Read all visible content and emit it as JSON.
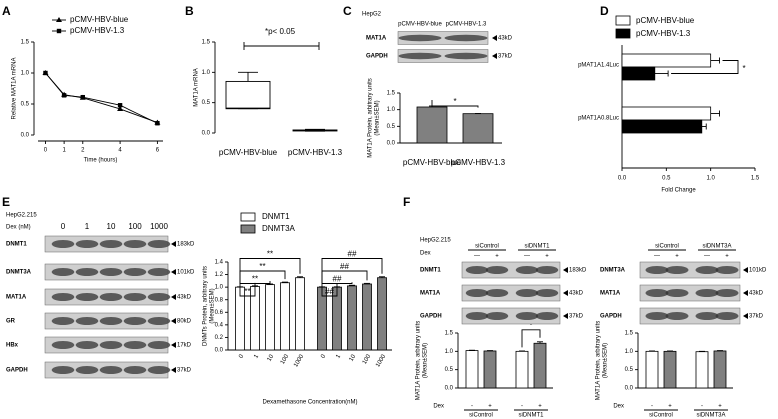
{
  "panel_labels": [
    "A",
    "B",
    "C",
    "D",
    "E",
    "F"
  ],
  "chart_data": [
    {
      "type": "line",
      "xlabel": "Time (hours)",
      "ylabel": "Relative MAT1A mRNA",
      "x": [
        0,
        1,
        2,
        4,
        6
      ],
      "xlim": [
        -0.4,
        6.3
      ],
      "xticks": [
        0,
        1,
        2,
        4,
        6
      ],
      "ylim": [
        0,
        1.5
      ],
      "yticks": [
        {
          "value": 0,
          "label": "0.0"
        },
        {
          "value": 0.5,
          "label": "0.5"
        },
        {
          "value": 1,
          "label": "1.0"
        },
        {
          "value": 1.5,
          "label": "1.5"
        }
      ],
      "legend": "top-right",
      "series": [
        {
          "name": "pCMV-HBV-blue",
          "marker": "triangle",
          "color": "#000000",
          "values": [
            1.0,
            0.65,
            0.6,
            0.42,
            0.2
          ]
        },
        {
          "name": "pCMV-HBV-1.3",
          "marker": "square",
          "color": "#000000",
          "values": [
            1.0,
            0.64,
            0.61,
            0.48,
            0.19
          ]
        }
      ]
    },
    {
      "type": "box",
      "ylabel": "MAT1A mRNA",
      "annotation": "*p< 0.05",
      "categories": [
        "pCMV-HBV-blue",
        "pCMV-HBV-1.3"
      ],
      "color": "#ffffff",
      "ylim": [
        0,
        1.5
      ],
      "yticks": [
        {
          "value": 0,
          "label": "0.0"
        },
        {
          "value": 0.5,
          "label": "0.5"
        },
        {
          "value": 1,
          "label": "1.0"
        },
        {
          "value": 1.5,
          "label": "1.5"
        }
      ],
      "boxes": [
        {
          "min": 0.4,
          "q1": 0.4,
          "median": 0.41,
          "q3": 0.85,
          "max": 1.0
        },
        {
          "min": 0.03,
          "q1": 0.04,
          "median": 0.045,
          "q3": 0.05,
          "max": 0.06
        }
      ]
    },
    {
      "type": "bar",
      "ylabel": [
        "MAT1A Protein, arbitrary units",
        "(Mean±SEM)"
      ],
      "annotation": "*",
      "categories": [
        "pCMV-HBV-blue",
        "pCMV-HBV-1.3"
      ],
      "values": [
        1.08,
        0.88
      ],
      "errors": [
        0.03,
        0.005
      ],
      "color": "#808080",
      "ylim": [
        0,
        1.5
      ],
      "yticks": [
        {
          "value": 0,
          "label": "0.0"
        },
        {
          "value": 0.5,
          "label": "0.5"
        },
        {
          "value": 1,
          "label": "1.0"
        },
        {
          "value": 1.5,
          "label": "1.5"
        }
      ]
    },
    {
      "type": "hbar",
      "xlabel": "Fold Change",
      "annotation": "*",
      "legend": "top",
      "categories": [
        "pMAT1A1.4Luc",
        "pMAT1A0.8Luc"
      ],
      "xlim": [
        0,
        1.5
      ],
      "xticks": [
        {
          "value": 0,
          "label": "0.0"
        },
        {
          "value": 0.5,
          "label": "0.5"
        },
        {
          "value": 1,
          "label": "1.0"
        },
        {
          "value": 1.5,
          "label": "1.5"
        }
      ],
      "series": [
        {
          "name": "pCMV-HBV-blue",
          "color": "#ffffff",
          "values": [
            1.0,
            1.0
          ],
          "errors": [
            0.1,
            0.1
          ]
        },
        {
          "name": "pCMV-HBV-1.3",
          "color": "#000000",
          "values": [
            0.37,
            0.9
          ],
          "errors": [
            0.15,
            0.05
          ]
        }
      ]
    },
    {
      "type": "grouped-bar",
      "ylabel": [
        "DNMTs Protein, arbitrary units",
        "(Mean±SEM)"
      ],
      "xlabel": "Dexamethasone Concentration(nM)",
      "categories": [
        "0",
        "1",
        "10",
        "100",
        "1000"
      ],
      "ylim": [
        0,
        1.4
      ],
      "yticks": [
        {
          "value": 0,
          "label": "0.0"
        },
        {
          "value": 0.2,
          "label": "0.2"
        },
        {
          "value": 0.4,
          "label": "0.4"
        },
        {
          "value": 0.6,
          "label": "0.6"
        },
        {
          "value": 0.8,
          "label": "0.8"
        },
        {
          "value": 1,
          "label": "1.0"
        },
        {
          "value": 1.2,
          "label": "1.2"
        },
        {
          "value": 1.4,
          "label": "1.4"
        }
      ],
      "series": [
        {
          "name": "DNMT1",
          "color": "#ffffff",
          "annotation": "**",
          "values": [
            1.0,
            1.01,
            1.04,
            1.07,
            1.15
          ],
          "errors": [
            0.005,
            0.01,
            0.01,
            0.01,
            0.015
          ]
        },
        {
          "name": "DNMT3A",
          "color": "#808080",
          "annotation": "##",
          "values": [
            1.0,
            1.0,
            1.02,
            1.05,
            1.15
          ],
          "errors": [
            0.005,
            0.005,
            0.01,
            0.01,
            0.015
          ]
        }
      ]
    },
    {
      "type": "bar",
      "ylabel": [
        "MAT1A Protein, arbitrary units",
        "(Mean±SEM)"
      ],
      "annotation": "*",
      "x_label": "Dex",
      "categories": [
        "-",
        "+",
        "-",
        "+"
      ],
      "groups": [
        "siControl",
        "siDNMT1"
      ],
      "values": [
        1.02,
        1.01,
        1.0,
        1.22
      ],
      "errors": [
        0.01,
        0.01,
        0.01,
        0.04
      ],
      "colors": [
        "#ffffff",
        "#808080",
        "#ffffff",
        "#808080"
      ],
      "ylim": [
        0,
        1.5
      ],
      "yticks": [
        {
          "value": 0,
          "label": "0.0"
        },
        {
          "value": 0.5,
          "label": "0.5"
        },
        {
          "value": 1,
          "label": "1.0"
        },
        {
          "value": 1.5,
          "label": "1.5"
        }
      ]
    },
    {
      "type": "bar",
      "ylabel": [
        "MAT1A Protein, arbitrary units",
        "(Mean±SEM)"
      ],
      "x_label": "Dex",
      "categories": [
        "-",
        "+",
        "-",
        "+"
      ],
      "groups": [
        "siControl",
        "siDNMT3A"
      ],
      "values": [
        1.0,
        1.0,
        0.99,
        1.01
      ],
      "errors": [
        0.01,
        0.01,
        0.01,
        0.01
      ],
      "colors": [
        "#ffffff",
        "#808080",
        "#ffffff",
        "#808080"
      ],
      "ylim": [
        0,
        1.5
      ],
      "yticks": [
        {
          "value": 0,
          "label": "0.0"
        },
        {
          "value": 0.5,
          "label": "0.5"
        },
        {
          "value": 1,
          "label": "1.0"
        },
        {
          "value": 1.5,
          "label": "1.5"
        }
      ]
    }
  ],
  "blots": [
    {
      "title": "HepG2",
      "columns": [
        "pCMV-HBV-blue",
        "pCMV-HBV-1.3"
      ],
      "rows": [
        {
          "name": "MAT1A",
          "size": "43kD"
        },
        {
          "name": "GAPDH",
          "size": "37kD"
        }
      ]
    },
    {
      "title": "HepG2.215",
      "dex_label": "Dex (nM)",
      "columns": [
        "0",
        "1",
        "10",
        "100",
        "1000"
      ],
      "rows": [
        {
          "name": "DNMT1",
          "size": "183kD"
        },
        {
          "name": "DNMT3A",
          "size": "101kD"
        },
        {
          "name": "MAT1A",
          "size": "43kD"
        },
        {
          "name": "GR",
          "size": "80kD"
        },
        {
          "name": "HBx",
          "size": "17kD"
        },
        {
          "name": "GAPDH",
          "size": "37kD"
        }
      ]
    },
    {
      "title": "HepG2.215",
      "dex_label": "Dex",
      "groups": [
        "siControl",
        "siDNMT1"
      ],
      "signs": [
        "—",
        "+",
        "—",
        "+"
      ],
      "rows": [
        {
          "name": "DNMT1",
          "size": "183kD"
        },
        {
          "name": "MAT1A",
          "size": "43kD"
        },
        {
          "name": "GAPDH",
          "size": "37kD"
        }
      ]
    },
    {
      "groups": [
        "siControl",
        "siDNMT3A"
      ],
      "signs": [
        "—",
        "+",
        "—",
        "+"
      ],
      "rows": [
        {
          "name": "DNMT3A",
          "size": "101kD"
        },
        {
          "name": "MAT1A",
          "size": "43kD"
        },
        {
          "name": "GAPDH",
          "size": "37kD"
        }
      ]
    }
  ]
}
